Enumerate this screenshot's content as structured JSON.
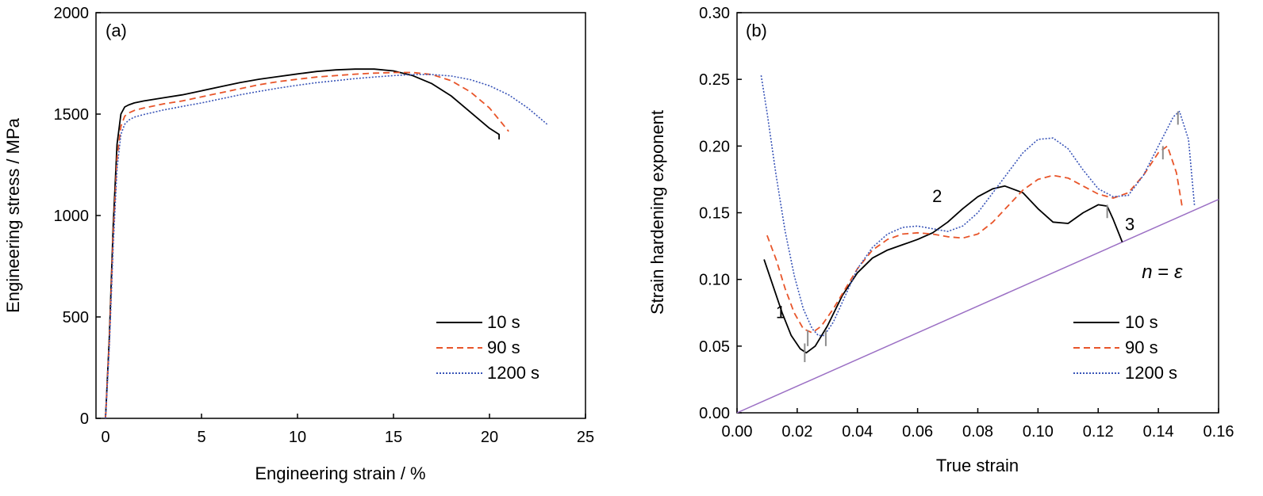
{
  "colors": {
    "series_10s": "#000000",
    "series_90s": "#e8552a",
    "series_1200s": "#3a55b8",
    "n_eq_eps_line": "#9b6fc4",
    "minimum_markers": "#8c8c8c"
  },
  "chart_data": [
    {
      "id": "a",
      "type": "line",
      "panel_label": "(a)",
      "xlabel": "Engineering strain / %",
      "ylabel": "Engineering stress / MPa",
      "xlim": [
        0,
        25
      ],
      "ylim": [
        0,
        2000
      ],
      "xticks": [
        0,
        5,
        10,
        15,
        20,
        25
      ],
      "yticks": [
        0,
        500,
        1000,
        1500,
        2000
      ],
      "xtick_labels": [
        "0",
        "5",
        "10",
        "15",
        "20",
        "25"
      ],
      "ytick_labels": [
        "0",
        "500",
        "1000",
        "1500",
        "2000"
      ],
      "grid": false,
      "legend_position": "lower-right",
      "series": [
        {
          "name": "10 s",
          "style": "solid",
          "x": [
            0,
            0.2,
            0.4,
            0.6,
            0.8,
            1.0,
            1.2,
            1.5,
            2,
            3,
            4,
            5,
            6,
            7,
            8,
            9,
            10,
            11,
            12,
            13,
            14,
            15,
            16,
            17,
            18,
            19,
            20,
            20.5,
            20.5
          ],
          "y": [
            0,
            400,
            950,
            1350,
            1500,
            1535,
            1545,
            1555,
            1565,
            1580,
            1595,
            1615,
            1635,
            1655,
            1672,
            1685,
            1698,
            1710,
            1718,
            1722,
            1722,
            1713,
            1690,
            1650,
            1590,
            1510,
            1430,
            1400,
            1375
          ]
        },
        {
          "name": "90 s",
          "style": "dashed",
          "x": [
            0,
            0.2,
            0.4,
            0.6,
            0.8,
            1.0,
            1.2,
            1.5,
            2,
            3,
            4,
            5,
            6,
            7,
            8,
            9,
            10,
            11,
            12,
            13,
            14,
            15,
            16,
            17,
            18,
            19,
            20,
            21
          ],
          "y": [
            0,
            380,
            900,
            1280,
            1440,
            1490,
            1505,
            1518,
            1530,
            1550,
            1565,
            1585,
            1605,
            1625,
            1645,
            1660,
            1672,
            1683,
            1690,
            1697,
            1702,
            1705,
            1705,
            1695,
            1665,
            1610,
            1530,
            1415
          ]
        },
        {
          "name": "1200 s",
          "style": "dotted",
          "x": [
            0,
            0.2,
            0.4,
            0.6,
            0.8,
            1.0,
            1.2,
            1.5,
            2,
            3,
            4,
            5,
            6,
            7,
            8,
            9,
            10,
            11,
            12,
            13,
            14,
            15,
            16,
            17,
            18,
            19,
            20,
            21,
            22,
            23
          ],
          "y": [
            0,
            350,
            850,
            1230,
            1400,
            1450,
            1470,
            1485,
            1498,
            1520,
            1538,
            1555,
            1575,
            1595,
            1612,
            1628,
            1642,
            1655,
            1665,
            1675,
            1683,
            1690,
            1695,
            1695,
            1688,
            1670,
            1640,
            1595,
            1530,
            1450
          ]
        }
      ]
    },
    {
      "id": "b",
      "type": "line",
      "panel_label": "(b)",
      "xlabel": "True strain",
      "ylabel": "Strain hardening exponent",
      "xlim": [
        0,
        0.16
      ],
      "ylim": [
        0,
        0.3
      ],
      "xticks": [
        0,
        0.02,
        0.04,
        0.06,
        0.08,
        0.1,
        0.12,
        0.14,
        0.16
      ],
      "yticks": [
        0,
        0.05,
        0.1,
        0.15,
        0.2,
        0.25,
        0.3
      ],
      "xtick_labels": [
        "0.00",
        "0.02",
        "0.04",
        "0.06",
        "0.08",
        "0.10",
        "0.12",
        "0.14",
        "0.16"
      ],
      "ytick_labels": [
        "0.00",
        "0.05",
        "0.10",
        "0.15",
        "0.20",
        "0.25",
        "0.30"
      ],
      "grid": false,
      "legend_position": "lower-right",
      "series": [
        {
          "name": "10 s",
          "style": "solid",
          "x": [
            0.009,
            0.012,
            0.015,
            0.018,
            0.021,
            0.023,
            0.026,
            0.03,
            0.035,
            0.04,
            0.045,
            0.05,
            0.055,
            0.06,
            0.065,
            0.07,
            0.075,
            0.08,
            0.085,
            0.089,
            0.095,
            0.1,
            0.105,
            0.11,
            0.115,
            0.12,
            0.123,
            0.125,
            0.128
          ],
          "y": [
            0.115,
            0.095,
            0.075,
            0.058,
            0.048,
            0.045,
            0.05,
            0.065,
            0.088,
            0.105,
            0.116,
            0.122,
            0.126,
            0.13,
            0.135,
            0.143,
            0.153,
            0.162,
            0.168,
            0.17,
            0.165,
            0.153,
            0.143,
            0.142,
            0.15,
            0.156,
            0.155,
            0.145,
            0.128
          ]
        },
        {
          "name": "90 s",
          "style": "dashed",
          "x": [
            0.01,
            0.013,
            0.016,
            0.019,
            0.022,
            0.025,
            0.028,
            0.032,
            0.036,
            0.04,
            0.045,
            0.05,
            0.055,
            0.06,
            0.065,
            0.07,
            0.075,
            0.08,
            0.085,
            0.09,
            0.095,
            0.1,
            0.105,
            0.11,
            0.115,
            0.12,
            0.125,
            0.13,
            0.135,
            0.14,
            0.143,
            0.146,
            0.148
          ],
          "y": [
            0.133,
            0.115,
            0.093,
            0.075,
            0.063,
            0.06,
            0.065,
            0.078,
            0.093,
            0.108,
            0.122,
            0.13,
            0.134,
            0.135,
            0.134,
            0.132,
            0.131,
            0.134,
            0.143,
            0.155,
            0.167,
            0.175,
            0.178,
            0.176,
            0.17,
            0.164,
            0.161,
            0.165,
            0.178,
            0.195,
            0.2,
            0.18,
            0.153
          ]
        },
        {
          "name": "1200 s",
          "style": "dotted",
          "x": [
            0.008,
            0.01,
            0.013,
            0.016,
            0.019,
            0.022,
            0.025,
            0.027,
            0.029,
            0.032,
            0.036,
            0.04,
            0.045,
            0.05,
            0.055,
            0.06,
            0.065,
            0.07,
            0.075,
            0.08,
            0.085,
            0.09,
            0.095,
            0.1,
            0.105,
            0.11,
            0.115,
            0.12,
            0.125,
            0.13,
            0.135,
            0.14,
            0.145,
            0.147,
            0.15,
            0.152
          ],
          "y": [
            0.253,
            0.225,
            0.178,
            0.136,
            0.103,
            0.078,
            0.063,
            0.058,
            0.058,
            0.068,
            0.088,
            0.108,
            0.124,
            0.134,
            0.139,
            0.14,
            0.138,
            0.136,
            0.14,
            0.15,
            0.165,
            0.18,
            0.195,
            0.205,
            0.206,
            0.198,
            0.182,
            0.168,
            0.162,
            0.163,
            0.178,
            0.2,
            0.222,
            0.226,
            0.205,
            0.155
          ]
        }
      ],
      "reference_line": {
        "x": [
          0,
          0.16
        ],
        "y": [
          0,
          0.16
        ]
      },
      "minimum_markers": [
        {
          "x": 0.0225,
          "y1": 0.038,
          "y2": 0.052
        },
        {
          "x": 0.0235,
          "y1": 0.05,
          "y2": 0.062
        },
        {
          "x": 0.0295,
          "y1": 0.05,
          "y2": 0.062
        },
        {
          "x": 0.123,
          "y1": 0.146,
          "y2": 0.156
        },
        {
          "x": 0.1415,
          "y1": 0.19,
          "y2": 0.2
        },
        {
          "x": 0.1465,
          "y1": 0.216,
          "y2": 0.226
        }
      ],
      "annotations": [
        {
          "text": "1",
          "x": 0.0145,
          "y": 0.071
        },
        {
          "text": "2",
          "x": 0.0665,
          "y": 0.158
        },
        {
          "text": "3",
          "x": 0.1305,
          "y": 0.137
        }
      ],
      "reference_label": {
        "n": "n",
        "eq": " = ",
        "eps": "ε",
        "x": 0.1345,
        "y": 0.101
      }
    }
  ]
}
